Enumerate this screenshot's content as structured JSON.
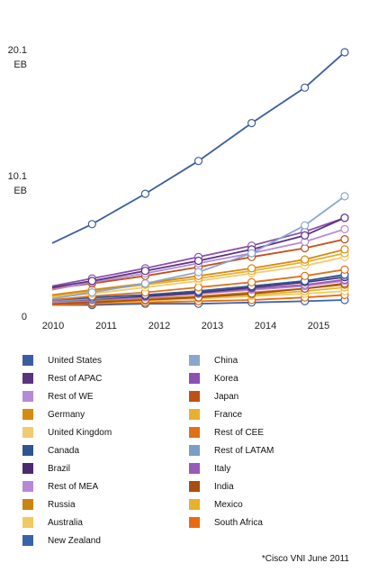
{
  "chart_data": {
    "type": "line",
    "x": [
      "2010",
      "2011",
      "2012",
      "2013",
      "2014",
      "2015"
    ],
    "x_values": [
      2010,
      2010.75,
      2011.75,
      2012.75,
      2013.75,
      2014.75,
      2015.5
    ],
    "ylim": [
      0,
      20.1
    ],
    "y_ticks": [
      {
        "value": 20.1,
        "line1": "20.1",
        "line2": "EB"
      },
      {
        "value": 10.1,
        "line1": "10.1",
        "line2": "EB"
      },
      {
        "value": 0,
        "line1": "0",
        "line2": ""
      }
    ],
    "grid": false,
    "legend_position": "bottom",
    "source_note": "*Cisco VNI June 2011",
    "series": [
      {
        "name": "United States",
        "color": "#3a5fa0",
        "values": [
          5.0,
          6.5,
          8.9,
          11.5,
          14.5,
          17.3,
          20.1
        ]
      },
      {
        "name": "China",
        "color": "#8aa6cf",
        "values": [
          0.6,
          1.1,
          1.8,
          2.7,
          4.2,
          6.4,
          8.7
        ]
      },
      {
        "name": "Rest of APAC",
        "color": "#5a3480",
        "values": [
          1.5,
          2.0,
          2.8,
          3.6,
          4.5,
          5.6,
          7.0
        ]
      },
      {
        "name": "Korea",
        "color": "#8d4fb0",
        "values": [
          1.6,
          2.2,
          3.0,
          3.9,
          4.8,
          5.9,
          7.0
        ]
      },
      {
        "name": "Rest of WE",
        "color": "#b58ad6",
        "values": [
          1.3,
          1.9,
          2.6,
          3.4,
          4.2,
          5.1,
          6.1
        ]
      },
      {
        "name": "Japan",
        "color": "#c0501a",
        "values": [
          1.4,
          1.8,
          2.4,
          3.1,
          3.9,
          4.6,
          5.3
        ]
      },
      {
        "name": "Germany",
        "color": "#d58a10",
        "values": [
          0.9,
          1.3,
          1.8,
          2.4,
          3.0,
          3.7,
          4.5
        ]
      },
      {
        "name": "France",
        "color": "#e8b030",
        "values": [
          0.8,
          1.2,
          1.7,
          2.2,
          2.8,
          3.5,
          4.2
        ]
      },
      {
        "name": "United Kingdom",
        "color": "#f0cc70",
        "values": [
          0.7,
          1.0,
          1.5,
          2.0,
          2.6,
          3.2,
          3.9
        ]
      },
      {
        "name": "Rest of CEE",
        "color": "#e07018",
        "values": [
          0.5,
          0.8,
          1.1,
          1.5,
          1.9,
          2.4,
          2.9
        ]
      },
      {
        "name": "Canada",
        "color": "#2f5590",
        "values": [
          0.5,
          0.7,
          0.9,
          1.2,
          1.6,
          2.0,
          2.5
        ]
      },
      {
        "name": "Rest of LATAM",
        "color": "#7b9dc8",
        "values": [
          0.4,
          0.6,
          0.9,
          1.2,
          1.6,
          2.0,
          2.4
        ]
      },
      {
        "name": "Brazil",
        "color": "#4a2a70",
        "values": [
          0.4,
          0.6,
          0.8,
          1.1,
          1.5,
          1.9,
          2.3
        ]
      },
      {
        "name": "Italy",
        "color": "#9a5ab8",
        "values": [
          0.4,
          0.5,
          0.8,
          1.0,
          1.4,
          1.7,
          2.1
        ]
      },
      {
        "name": "Rest of MEA",
        "color": "#b888d8",
        "values": [
          0.3,
          0.5,
          0.7,
          1.0,
          1.3,
          1.6,
          2.0
        ]
      },
      {
        "name": "India",
        "color": "#a84e10",
        "values": [
          0.2,
          0.3,
          0.5,
          0.7,
          1.0,
          1.4,
          1.8
        ]
      },
      {
        "name": "Russia",
        "color": "#c98510",
        "values": [
          0.3,
          0.4,
          0.6,
          0.8,
          1.1,
          1.4,
          1.7
        ]
      },
      {
        "name": "Mexico",
        "color": "#e6b22c",
        "values": [
          0.2,
          0.3,
          0.5,
          0.7,
          0.9,
          1.2,
          1.5
        ]
      },
      {
        "name": "Australia",
        "color": "#f2c860",
        "values": [
          0.2,
          0.3,
          0.4,
          0.6,
          0.8,
          1.0,
          1.2
        ]
      },
      {
        "name": "South Africa",
        "color": "#e86a10",
        "values": [
          0.1,
          0.2,
          0.3,
          0.4,
          0.5,
          0.7,
          0.9
        ]
      },
      {
        "name": "New Zealand",
        "color": "#3a62a8",
        "values": [
          0.1,
          0.1,
          0.2,
          0.2,
          0.3,
          0.4,
          0.5
        ]
      }
    ]
  },
  "legend": {
    "columns": [
      [
        "United States",
        "Rest of APAC",
        "Rest of WE",
        "Germany",
        "United Kingdom",
        "Canada",
        "Brazil",
        "Rest of MEA",
        "Russia",
        "Australia",
        "New Zealand"
      ],
      [
        "China",
        "Korea",
        "Japan",
        "France",
        "Rest of CEE",
        "Rest of LATAM",
        "Italy",
        "India",
        "Mexico",
        "South Africa"
      ]
    ]
  }
}
